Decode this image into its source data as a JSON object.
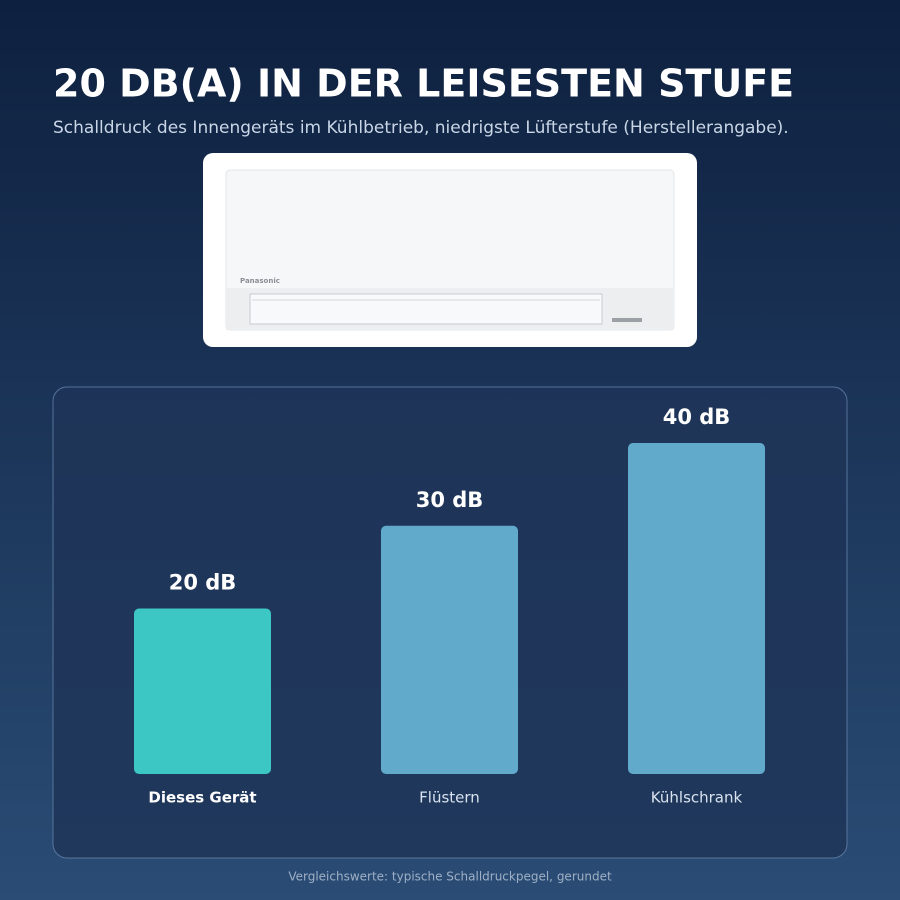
{
  "chart_data": {
    "type": "bar",
    "title": "20 DB(A) IN DER LEISESTEN STUFE",
    "subtitle": "Schalldruck des Innengeräts im Kühlbetrieb, niedrigste Lüfterstufe (Herstellerangabe).",
    "product_brand": "Panasonic",
    "categories": [
      "Dieses Gerät",
      "Flüstern",
      "Kühlschrank"
    ],
    "values": [
      20,
      30,
      40
    ],
    "value_labels": [
      "20 dB",
      "30 dB",
      "40 dB"
    ],
    "colors": [
      "#3cc6c4",
      "#62aacb",
      "#62aacb"
    ],
    "ylim": [
      0,
      40
    ],
    "note": "Vergleichswerte: typische Schalldruckpegel, gerundet"
  }
}
